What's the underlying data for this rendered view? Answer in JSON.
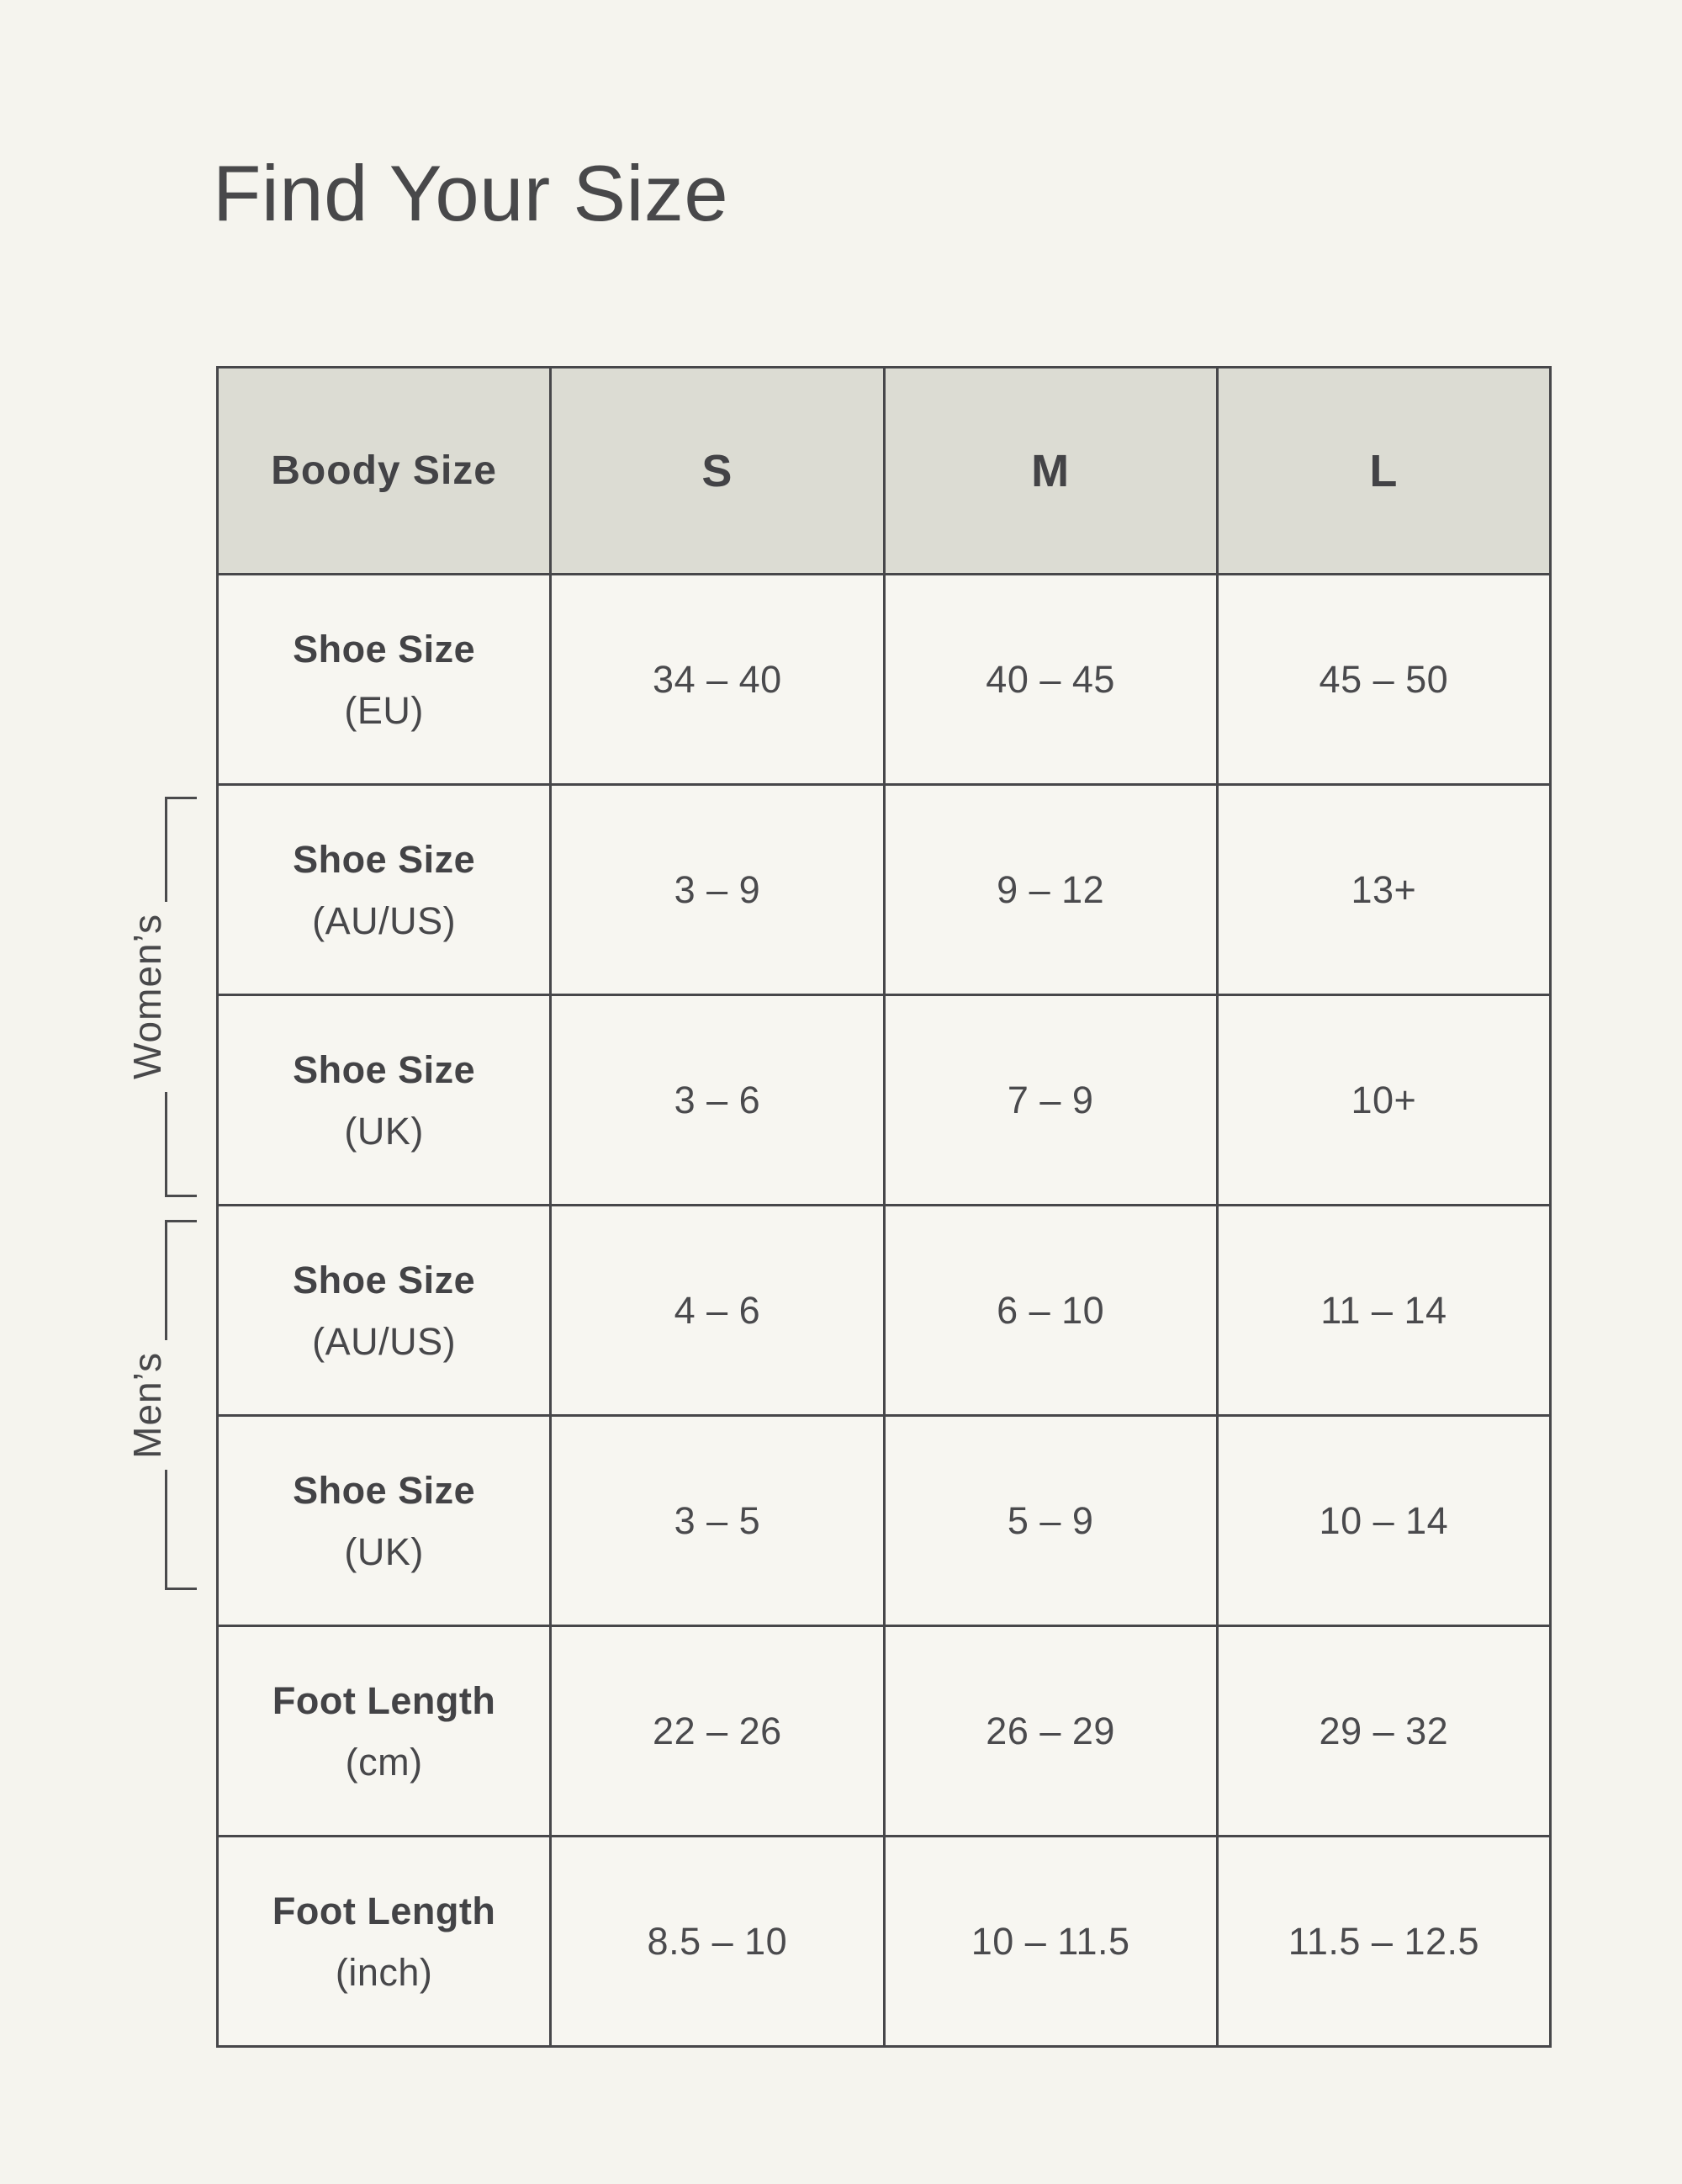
{
  "title": "Find Your Size",
  "groups": {
    "womens": "Women’s",
    "mens": "Men’s"
  },
  "chart_data": {
    "type": "table",
    "title": "Find Your Size",
    "columns": [
      "Boody Size",
      "S",
      "M",
      "L"
    ],
    "rows": [
      {
        "label": "Shoe Size",
        "unit": "(EU)",
        "group": "",
        "values": [
          "34 – 40",
          "40 – 45",
          "45 – 50"
        ]
      },
      {
        "label": "Shoe Size",
        "unit": "(AU/US)",
        "group": "Women’s",
        "values": [
          "3 – 9",
          "9 – 12",
          "13+"
        ]
      },
      {
        "label": "Shoe Size",
        "unit": "(UK)",
        "group": "Women’s",
        "values": [
          "3 – 6",
          "7 – 9",
          "10+"
        ]
      },
      {
        "label": "Shoe Size",
        "unit": "(AU/US)",
        "group": "Men’s",
        "values": [
          "4 – 6",
          "6 – 10",
          "11 – 14"
        ]
      },
      {
        "label": "Shoe Size",
        "unit": "(UK)",
        "group": "Men’s",
        "values": [
          "3 – 5",
          "5 – 9",
          "10 – 14"
        ]
      },
      {
        "label": "Foot Length",
        "unit": "(cm)",
        "group": "",
        "values": [
          "22 – 26",
          "26 – 29",
          "29 – 32"
        ]
      },
      {
        "label": "Foot Length",
        "unit": "(inch)",
        "group": "",
        "values": [
          "8.5 – 10",
          "10 – 11.5",
          "11.5 – 12.5"
        ]
      }
    ],
    "row_groups": [
      {
        "name": "Women’s",
        "row_indexes": [
          1,
          2
        ]
      },
      {
        "name": "Men’s",
        "row_indexes": [
          3,
          4
        ]
      }
    ],
    "colors": {
      "page_background": "#f5f4ee",
      "header_cell_background": "#dcdcd3",
      "cell_background": "#f7f6f1",
      "border": "#47474a",
      "text": "#47474a"
    },
    "legend_position": "none",
    "grid": true
  }
}
